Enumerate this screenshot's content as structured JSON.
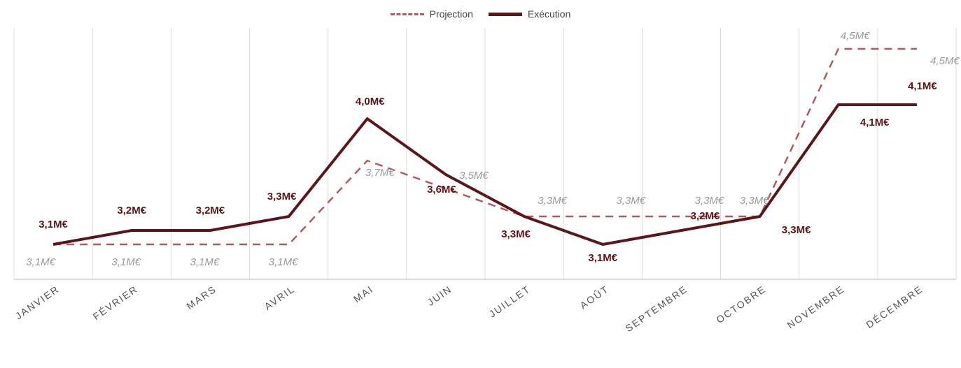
{
  "chart_data": {
    "type": "line",
    "categories": [
      "JANVIER",
      "FÉVRIER",
      "MARS",
      "AVRIL",
      "MAI",
      "JUIN",
      "JUILLET",
      "AOÛT",
      "SEPTEMBRE",
      "OCTOBRE",
      "NOVEMBRE",
      "DÉCEMBRE"
    ],
    "series": [
      {
        "name": "Projection",
        "style": "dashed",
        "color": "#b05a5e",
        "values": [
          3.1,
          3.1,
          3.1,
          3.1,
          3.7,
          3.5,
          3.3,
          3.3,
          3.3,
          3.3,
          4.5,
          4.5
        ],
        "labels": [
          "3,1M€",
          "3,1M€",
          "3,1M€",
          "3,1M€",
          "3,7M€",
          "3,5M€",
          "3,3M€",
          "3,3M€",
          "3,3M€",
          "3,3M€",
          "4,5M€",
          "4,5M€"
        ]
      },
      {
        "name": "Exécution",
        "style": "solid",
        "color": "#5c1518",
        "values": [
          3.1,
          3.2,
          3.2,
          3.3,
          4.0,
          3.6,
          3.3,
          3.1,
          3.2,
          3.3,
          4.1,
          4.1
        ],
        "labels": [
          "3,1M€",
          "3,2M€",
          "3,2M€",
          "3,3M€",
          "4,0M€",
          "3,6M€",
          "3,3M€",
          "3,1M€",
          "3,2M€",
          "3,3M€",
          "4,1M€",
          "4,1M€"
        ]
      }
    ],
    "ylim": [
      2.85,
      4.65
    ],
    "grid": "vertical",
    "legend_position": "top-center"
  }
}
